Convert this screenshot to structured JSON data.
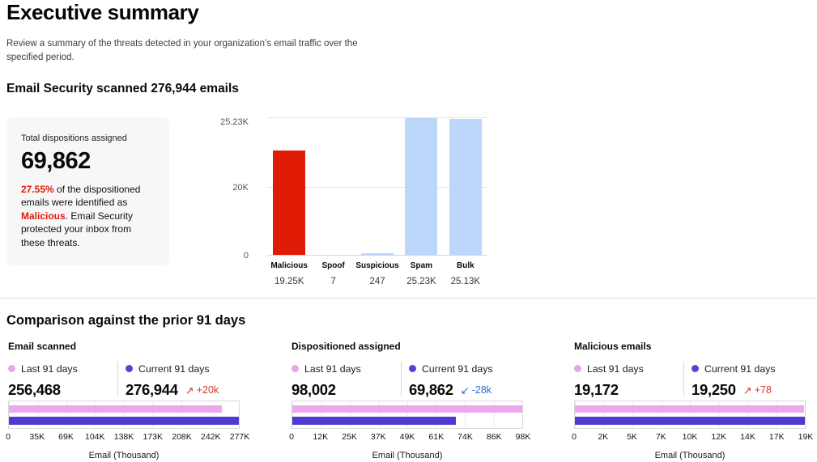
{
  "page": {
    "title": "Executive summary",
    "subtitle": "Review a summary of the threats detected in your organization’s email traffic over the specified period."
  },
  "scanned_section": {
    "heading": "Email Security scanned 276,944 emails",
    "card": {
      "label": "Total dispositions assigned",
      "value": "69,862",
      "desc_percent": "27.55%",
      "desc_mid": " of the dispositioned emails were identified as ",
      "desc_malicious": "Malicious",
      "desc_rest": ". Email Security protected your inbox from these threats."
    }
  },
  "comparison_section": {
    "heading": "Comparison against the prior 91 days",
    "legend_last": "Last 91 days",
    "legend_current": "Current 91 days",
    "panels": [
      {
        "title": "Email scanned",
        "last_value": "256,468",
        "last_num": 256468,
        "current_value": "276,944",
        "current_num": 276944,
        "delta_arrow": "↗",
        "delta_text": "+20k",
        "delta_color": "#cf3a2b",
        "xticks": [
          "0",
          "35K",
          "69K",
          "104K",
          "138K",
          "173K",
          "208K",
          "242K",
          "277K"
        ],
        "xlabel": "Email (Thousand)"
      },
      {
        "title": "Dispositioned assigned",
        "last_value": "98,002",
        "last_num": 98002,
        "current_value": "69,862",
        "current_num": 69862,
        "delta_arrow": "↙",
        "delta_text": "-28k",
        "delta_color": "#2f6cd9",
        "xticks": [
          "0",
          "12K",
          "25K",
          "37K",
          "49K",
          "61K",
          "74K",
          "86K",
          "98K"
        ],
        "xlabel": "Email (Thousand)"
      },
      {
        "title": "Malicious emails",
        "last_value": "19,172",
        "last_num": 19172,
        "current_value": "19,250",
        "current_num": 19250,
        "delta_arrow": "↗",
        "delta_text": "+78",
        "delta_color": "#cf3a2b",
        "xticks": [
          "0",
          "2K",
          "5K",
          "7K",
          "10K",
          "12K",
          "14K",
          "17K",
          "19K"
        ],
        "xlabel": "Email (Thousand)"
      }
    ]
  },
  "chart_data": [
    {
      "type": "bar",
      "title": "Email dispositions assigned",
      "categories": [
        "Malicious",
        "Spoof",
        "Suspicious",
        "Spam",
        "Bulk"
      ],
      "values": [
        19250,
        7,
        247,
        25230,
        25130
      ],
      "value_labels": [
        "19.25K",
        "7",
        "247",
        "25.23K",
        "25.13K"
      ],
      "yticks": [
        "25.23K",
        "20K",
        "0"
      ],
      "ylim": [
        0,
        25230
      ],
      "bar_colors": [
        "#e01b05",
        "#bdd7fb",
        "#bdd7fb",
        "#bdd7fb",
        "#bdd7fb"
      ],
      "grid": "horizontal gridlines at 0, 20K, 25.23K; no legend"
    },
    {
      "type": "bar-horizontal",
      "title": "Email scanned",
      "categories": [
        "Last 91 days",
        "Current 91 days"
      ],
      "values": [
        256468,
        276944
      ],
      "xlim": [
        0,
        276944
      ],
      "xticks": [
        "0",
        "35K",
        "69K",
        "104K",
        "138K",
        "173K",
        "208K",
        "242K",
        "277K"
      ],
      "xlabel": "Email (Thousand)",
      "colors": [
        "#e9a9ea",
        "#4c3cd2"
      ],
      "legend_position": "top"
    },
    {
      "type": "bar-horizontal",
      "title": "Dispositioned assigned",
      "categories": [
        "Last 91 days",
        "Current 91 days"
      ],
      "values": [
        98002,
        69862
      ],
      "xlim": [
        0,
        98002
      ],
      "xticks": [
        "0",
        "12K",
        "25K",
        "37K",
        "49K",
        "61K",
        "74K",
        "86K",
        "98K"
      ],
      "xlabel": "Email (Thousand)",
      "colors": [
        "#e9a9ea",
        "#4c3cd2"
      ],
      "legend_position": "top"
    },
    {
      "type": "bar-horizontal",
      "title": "Malicious emails",
      "categories": [
        "Last 91 days",
        "Current 91 days"
      ],
      "values": [
        19172,
        19250
      ],
      "xlim": [
        0,
        19250
      ],
      "xticks": [
        "0",
        "2K",
        "5K",
        "7K",
        "10K",
        "12K",
        "14K",
        "17K",
        "19K"
      ],
      "xlabel": "Email (Thousand)",
      "colors": [
        "#e9a9ea",
        "#4c3cd2"
      ],
      "legend_position": "top"
    }
  ],
  "colors": {
    "malicious_red": "#e01b05",
    "disposition_blue": "#bdd7fb",
    "last_pink": "#e9a9ea",
    "current_purple": "#4c3cd2",
    "delta_up_red": "#cf3a2b",
    "delta_down_blue": "#2f6cd9",
    "card_background": "#f7f7f8"
  }
}
